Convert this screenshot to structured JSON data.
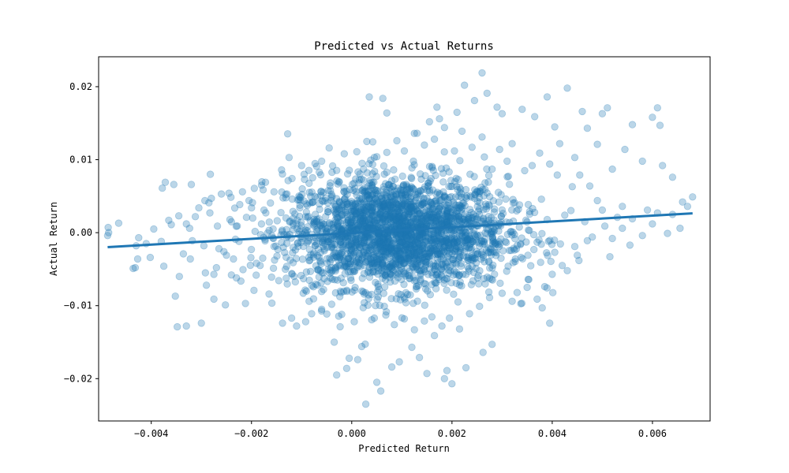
{
  "chart_data": {
    "type": "scatter",
    "title": "Predicted vs Actual Returns",
    "xlabel": "Predicted Return",
    "ylabel": "Actual Return",
    "xlim": [
      -0.00505,
      0.00715
    ],
    "ylim": [
      -0.0258,
      0.0241
    ],
    "xticks": [
      -0.004,
      -0.002,
      0.0,
      0.002,
      0.004,
      0.006
    ],
    "xtick_labels": [
      "−0.004",
      "−0.002",
      "0.000",
      "0.002",
      "0.004",
      "0.006"
    ],
    "yticks": [
      -0.02,
      -0.01,
      0.0,
      0.01,
      0.02
    ],
    "ytick_labels": [
      "−0.02",
      "−0.01",
      "0.00",
      "0.01",
      "0.02"
    ],
    "grid": false,
    "legend": "none",
    "colors": {
      "points": "#1f77b4",
      "fit_line": "#1f77b4"
    },
    "point_alpha": 0.3,
    "series": [
      {
        "type": "scatter",
        "points": [
          [
            -0.00486,
            0.0007
          ],
          [
            -0.00487,
            -0.0004
          ],
          [
            -0.00485,
            0.0
          ],
          [
            -0.00465,
            0.0013
          ],
          [
            -0.00436,
            -0.0049
          ],
          [
            -0.00432,
            -0.0048
          ],
          [
            -0.00427,
            -0.0036
          ],
          [
            -0.00425,
            -0.0007
          ],
          [
            -0.0043,
            -0.0018
          ],
          [
            -0.00402,
            -0.0034
          ],
          [
            -0.00378,
            0.0061
          ],
          [
            -0.00372,
            0.0069
          ],
          [
            -0.00375,
            -0.0046
          ],
          [
            -0.00355,
            0.0066
          ],
          [
            -0.00352,
            -0.0087
          ],
          [
            -0.00348,
            -0.0129
          ],
          [
            -0.00344,
            -0.006
          ],
          [
            -0.00336,
            -0.0029
          ],
          [
            -0.0033,
            -0.0128
          ],
          [
            -0.0032,
            0.0066
          ],
          [
            -0.00322,
            -0.0036
          ],
          [
            -0.00312,
            0.0022
          ],
          [
            -0.003,
            -0.0124
          ],
          [
            -0.00292,
            -0.0055
          ],
          [
            -0.00285,
            0.0041
          ],
          [
            -0.0028,
            0.0047
          ],
          [
            -0.00275,
            -0.0091
          ],
          [
            -0.00265,
            -0.0022
          ],
          [
            -0.0026,
            0.0053
          ],
          [
            -0.00252,
            -0.0099
          ],
          [
            -0.00245,
            0.0054
          ],
          [
            -0.00236,
            -0.0036
          ],
          [
            -0.0023,
            -0.0062
          ],
          [
            -0.00218,
            0.0056
          ],
          [
            -0.00212,
            -0.0097
          ],
          [
            -0.002,
            0.0034
          ],
          [
            -0.00195,
            -0.0079
          ],
          [
            -0.0018,
            0.0065
          ],
          [
            -0.00172,
            0.0069
          ],
          [
            -0.00165,
            -0.0084
          ],
          [
            -0.00155,
            0.0056
          ],
          [
            -0.0014,
            0.0086
          ],
          [
            -0.00138,
            -0.0124
          ],
          [
            -0.00125,
            0.0103
          ],
          [
            -0.0012,
            -0.0117
          ],
          [
            -0.0011,
            -0.0128
          ],
          [
            -0.001,
            0.0092
          ],
          [
            -0.00092,
            -0.0122
          ],
          [
            -0.0008,
            -0.0111
          ],
          [
            -0.0006,
            0.0098
          ],
          [
            -0.00035,
            -0.015
          ],
          [
            -0.0003,
            -0.0195
          ],
          [
            -0.0001,
            -0.0186
          ],
          [
            -5e-05,
            -0.0172
          ],
          [
            0.00012,
            -0.0174
          ],
          [
            0.0002,
            -0.0156
          ],
          [
            0.00028,
            -0.0235
          ],
          [
            0.00035,
            0.0186
          ],
          [
            0.0005,
            -0.0205
          ],
          [
            0.00058,
            -0.0217
          ],
          [
            0.00062,
            0.0184
          ],
          [
            0.0007,
            0.0164
          ],
          [
            0.0008,
            -0.0184
          ],
          [
            0.00095,
            -0.0177
          ],
          [
            0.0012,
            -0.0157
          ],
          [
            0.00135,
            -0.0171
          ],
          [
            0.0015,
            -0.0193
          ],
          [
            0.00155,
            0.0152
          ],
          [
            0.0017,
            0.0172
          ],
          [
            0.00175,
            0.0156
          ],
          [
            0.00185,
            -0.02
          ],
          [
            0.0019,
            -0.0189
          ],
          [
            0.002,
            -0.0207
          ],
          [
            0.0021,
            0.0165
          ],
          [
            0.00225,
            0.0202
          ],
          [
            0.00228,
            -0.0185
          ],
          [
            0.00245,
            0.0181
          ],
          [
            0.0026,
            0.0219
          ],
          [
            0.00262,
            -0.0164
          ],
          [
            0.0027,
            0.0191
          ],
          [
            0.0028,
            -0.0153
          ],
          [
            0.0029,
            0.0172
          ],
          [
            0.003,
            0.0163
          ],
          [
            0.0032,
            0.0122
          ],
          [
            0.0034,
            0.0169
          ],
          [
            0.00365,
            0.0159
          ],
          [
            0.0038,
            -0.0103
          ],
          [
            0.0039,
            0.0186
          ],
          [
            0.00395,
            -0.0124
          ],
          [
            0.00405,
            0.0145
          ],
          [
            0.00415,
            0.0122
          ],
          [
            0.0043,
            0.0198
          ],
          [
            0.00445,
            0.0103
          ],
          [
            0.0046,
            0.0166
          ],
          [
            0.0047,
            0.0143
          ],
          [
            0.0049,
            0.0121
          ],
          [
            0.005,
            0.0163
          ],
          [
            0.0051,
            0.0171
          ],
          [
            0.0052,
            0.0087
          ],
          [
            0.00545,
            0.0114
          ],
          [
            0.0056,
            0.0148
          ],
          [
            0.0058,
            0.0098
          ],
          [
            0.006,
            0.0158
          ],
          [
            0.0061,
            0.0171
          ],
          [
            0.00615,
            0.0147
          ],
          [
            0.0062,
            0.0092
          ],
          [
            0.0064,
            0.0076
          ],
          [
            0.0066,
            0.0042
          ],
          [
            0.0067,
            0.0036
          ],
          [
            0.0068,
            0.0049
          ],
          [
            0.00655,
            0.0006
          ],
          [
            0.0064,
            0.0025
          ],
          [
            0.0061,
            0.0027
          ],
          [
            0.0056,
            0.0019
          ],
          [
            0.0054,
            0.0036
          ],
          [
            0.005,
            0.0031
          ],
          [
            0.0048,
            -0.0006
          ],
          [
            0.0047,
            -0.0011
          ],
          [
            0.0045,
            -0.0031
          ],
          [
            0.0043,
            -0.0052
          ],
          [
            0.0042,
            -0.0045
          ],
          [
            0.004,
            -0.0057
          ],
          [
            0.00385,
            -0.0074
          ],
          [
            0.0037,
            -0.0091
          ],
          [
            0.0035,
            -0.0075
          ],
          [
            0.0033,
            -0.0082
          ],
          [
            0.0032,
            -0.0094
          ],
          [
            0.00515,
            -0.0033
          ],
          [
            0.0049,
            0.0044
          ],
          [
            0.00475,
            0.0064
          ],
          [
            0.00455,
            0.0079
          ],
          [
            0.0044,
            0.0063
          ],
          [
            0.0041,
            0.0079
          ],
          [
            0.00395,
            0.0094
          ],
          [
            0.00375,
            0.0109
          ],
          [
            0.0036,
            0.0092
          ],
          [
            0.00345,
            0.0085
          ],
          [
            0.0031,
            0.0098
          ],
          [
            0.00295,
            0.0114
          ],
          [
            0.0028,
            0.0087
          ],
          [
            0.0026,
            0.0131
          ],
          [
            0.0024,
            0.0117
          ],
          [
            0.0022,
            0.0139
          ],
          [
            0.00205,
            0.0112
          ],
          [
            0.00185,
            0.0144
          ],
          [
            0.00165,
            0.0128
          ],
          [
            0.00145,
            0.012
          ],
          [
            0.00125,
            0.0136
          ],
          [
            0.00105,
            0.0112
          ],
          [
            0.0009,
            0.0126
          ],
          [
            0.0007,
            0.011
          ],
          [
            0.0005,
            0.0104
          ],
          [
            0.0003,
            0.0125
          ],
          [
            0.0001,
            0.0111
          ],
          [
            -0.00015,
            0.0108
          ],
          [
            -0.00045,
            0.0116
          ],
          [
            -0.0007,
            0.0091
          ],
          [
            -0.00095,
            0.008
          ],
          [
            -0.00085,
            -0.0094
          ],
          [
            -0.0006,
            -0.0105
          ],
          [
            -0.0004,
            -0.0098
          ],
          [
            -0.0002,
            -0.0112
          ],
          [
            5e-05,
            -0.0122
          ],
          [
            0.00025,
            -0.0096
          ],
          [
            0.00045,
            -0.0117
          ],
          [
            0.00065,
            -0.0101
          ],
          [
            0.00085,
            -0.0126
          ],
          [
            0.00105,
            -0.0118
          ],
          [
            0.00125,
            -0.0133
          ],
          [
            0.00145,
            -0.0121
          ],
          [
            0.00165,
            -0.0141
          ],
          [
            0.0018,
            -0.0128
          ],
          [
            0.00195,
            -0.0117
          ],
          [
            0.00215,
            -0.0132
          ],
          [
            0.00235,
            -0.0111
          ],
          [
            0.00255,
            -0.0101
          ],
          [
            0.00275,
            -0.0089
          ],
          [
            0.003,
            -0.0083
          ],
          [
            -0.0029,
            -0.0072
          ],
          [
            -0.0027,
            -0.0048
          ],
          [
            -0.0025,
            -0.0031
          ],
          [
            -0.0024,
            -0.0058
          ],
          [
            -0.00225,
            -0.0012
          ],
          [
            -0.0021,
            0.0021
          ],
          [
            -0.00205,
            0.0044
          ],
          [
            -0.0019,
            -0.0042
          ],
          [
            -0.00175,
            0.0031
          ],
          [
            -0.0016,
            -0.0061
          ],
          [
            -0.00345,
            0.0023
          ],
          [
            -0.0033,
            0.0012
          ],
          [
            -0.00318,
            -0.0011
          ],
          [
            -0.00305,
            0.0034
          ],
          [
            -0.00295,
            -0.0018
          ],
          [
            -0.00283,
            0.0027
          ],
          [
            -0.00268,
            0.0009
          ],
          [
            -0.00255,
            -0.0026
          ],
          [
            -0.00243,
            0.0018
          ],
          [
            -0.00232,
            -0.0009
          ],
          [
            -0.00395,
            0.0005
          ],
          [
            -0.0038,
            -0.0012
          ],
          [
            -0.00365,
            0.0017
          ],
          [
            -0.0041,
            -0.0015
          ],
          [
            -0.0036,
            0.0011
          ],
          [
            0.0052,
            -0.0008
          ],
          [
            0.0054,
            0.0006
          ],
          [
            0.0058,
            -0.0004
          ],
          [
            0.006,
            0.0012
          ],
          [
            0.0063,
            -0.0001
          ],
          [
            0.0059,
            0.0031
          ],
          [
            0.00555,
            -0.0017
          ],
          [
            0.0053,
            0.0021
          ],
          [
            0.00505,
            0.0009
          ],
          [
            0.00465,
            0.0015
          ],
          [
            0.00445,
            -0.0019
          ],
          [
            0.00425,
            0.0024
          ],
          [
            0.00405,
            -0.0027
          ],
          [
            0.0039,
            0.0018
          ],
          [
            0.0037,
            -0.0013
          ],
          [
            0.00355,
            0.0029
          ],
          [
            0.00338,
            -0.0034
          ],
          [
            0.00325,
            0.0041
          ],
          [
            0.00312,
            -0.0046
          ],
          [
            0.00298,
            0.0052
          ],
          [
            0.00285,
            -0.0057
          ]
        ]
      }
    ],
    "fit_line": {
      "x": [
        -0.00487,
        0.0068
      ],
      "y": [
        -0.00198,
        0.00265
      ]
    }
  }
}
